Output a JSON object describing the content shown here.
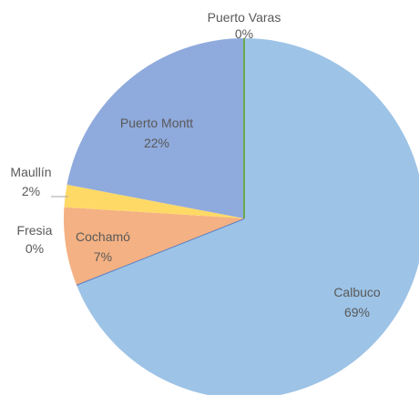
{
  "chart_data": {
    "type": "pie",
    "start_angle_deg": 0,
    "direction": "clockwise",
    "slices": [
      {
        "label": "Calbuco",
        "percent_label": "69%",
        "value": 69,
        "color": "#9dc3e6",
        "edge": "#6f9fd0"
      },
      {
        "label": "Fresia",
        "percent_label": "0%",
        "value": 0,
        "color": "#8faadc",
        "edge": "#5b7fc4"
      },
      {
        "label": "Cochamó",
        "percent_label": "7%",
        "value": 7,
        "color": "#f4b183",
        "edge": "#e07a45"
      },
      {
        "label": "Maullín",
        "percent_label": "2%",
        "value": 2,
        "color": "#ffd966",
        "edge": "#f0b400"
      },
      {
        "label": "Puerto Montt",
        "percent_label": "22%",
        "value": 22,
        "color": "#8faadc",
        "edge": "#5b7fc4"
      },
      {
        "label": "Puerto Varas",
        "percent_label": "0%",
        "value": 0,
        "color": "#a9d18e",
        "edge": "#6aa84f"
      }
    ]
  }
}
